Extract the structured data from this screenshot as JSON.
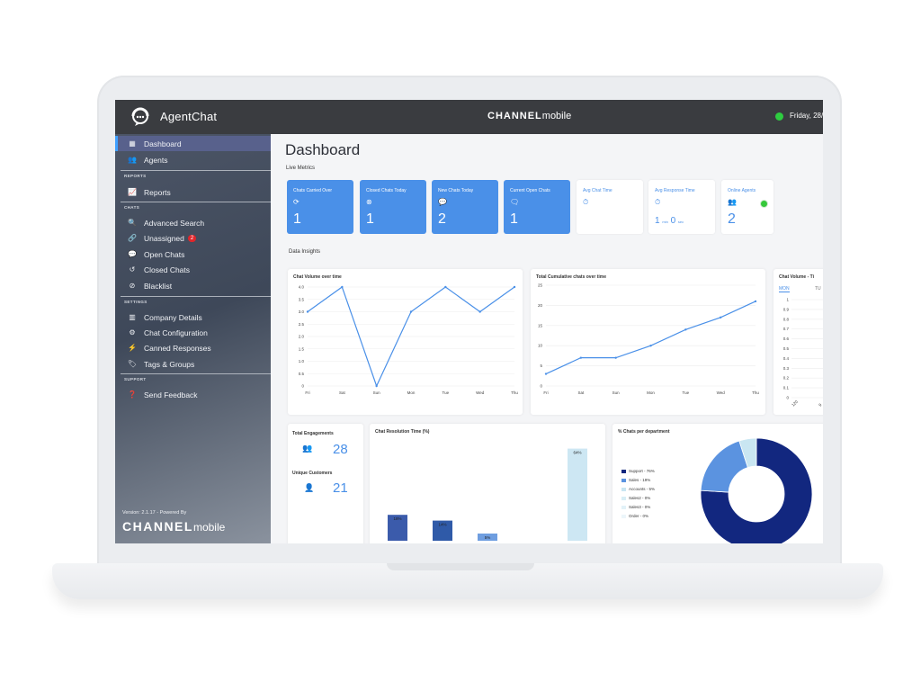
{
  "app": {
    "title": "AgentChat",
    "brand_bold": "CHANNEL",
    "brand_light": "mobile",
    "date_text": "Friday, 28/0"
  },
  "sidebar": {
    "sections": {
      "reports": "REPORTS",
      "chats": "CHATS",
      "settings": "SETTINGS",
      "support": "SUPPORT"
    },
    "items": [
      {
        "label": "Dashboard",
        "icon": "grid-icon"
      },
      {
        "label": "Agents",
        "icon": "users-icon"
      },
      {
        "label": "Reports",
        "icon": "chart-icon"
      },
      {
        "label": "Advanced Search",
        "icon": "search-icon"
      },
      {
        "label": "Unassigned",
        "icon": "link-icon",
        "badge": "2"
      },
      {
        "label": "Open Chats",
        "icon": "chat-bubbles-icon"
      },
      {
        "label": "Closed Chats",
        "icon": "history-icon"
      },
      {
        "label": "Blacklist",
        "icon": "ban-icon"
      },
      {
        "label": "Company Details",
        "icon": "building-icon"
      },
      {
        "label": "Chat Configuration",
        "icon": "cogs-icon"
      },
      {
        "label": "Canned Responses",
        "icon": "bolt-icon"
      },
      {
        "label": "Tags & Groups",
        "icon": "tags-icon"
      },
      {
        "label": "Send Feedback",
        "icon": "question-icon"
      }
    ],
    "version": "Version: 2.1.17 - Powered By",
    "footer_brand_bold": "CHANNEL",
    "footer_brand_light": "mobile"
  },
  "main": {
    "title": "Dashboard",
    "live_metrics_label": "Live Metrics",
    "data_insights_label": "Data Insights",
    "metrics": [
      {
        "title": "Chats Carried Over",
        "value": "1",
        "icon": "refresh-icon"
      },
      {
        "title": "Closed Chats Today",
        "value": "1",
        "icon": "close-circle-icon"
      },
      {
        "title": "New Chats Today",
        "value": "2",
        "icon": "chats-icon"
      },
      {
        "title": "Current Open Chats",
        "value": "1",
        "icon": "chat-icon"
      },
      {
        "title": "Avg Chat Time",
        "value": "",
        "icon": "stopwatch-icon"
      },
      {
        "title": "Avg Response Time",
        "value_min": "1",
        "unit_min": "min",
        "value_sec": "0",
        "unit_sec": "sec",
        "icon": "stopwatch-icon"
      },
      {
        "title": "Online Agents",
        "value": "2",
        "icon": "users-icon"
      }
    ],
    "engagements": {
      "total_label": "Total Engagements",
      "total_value": "28",
      "unique_label": "Unique Customers",
      "unique_value": "21"
    },
    "volume_tabs": [
      "MON",
      "TU"
    ]
  },
  "chart_data": [
    {
      "type": "line",
      "title": "Chat Volume over time",
      "categories": [
        "Fri",
        "Sat",
        "Sun",
        "Mon",
        "Tue",
        "Wed",
        "Thu"
      ],
      "values": [
        3.0,
        4.0,
        0.0,
        3.0,
        4.0,
        3.0,
        4.0
      ],
      "yticks": [
        "0",
        "0.5",
        "1.0",
        "1.5",
        "2.0",
        "2.5",
        "3.0",
        "3.5",
        "4.0"
      ],
      "ylim": [
        0,
        4
      ],
      "color": "#4a90e8"
    },
    {
      "type": "line",
      "title": "Total Cumulative chats over time",
      "categories": [
        "Fri",
        "Sat",
        "Sun",
        "Mon",
        "Tue",
        "Wed",
        "Thu"
      ],
      "values": [
        3,
        7,
        7,
        10,
        14,
        17,
        21
      ],
      "yticks": [
        "0",
        "5",
        "10",
        "15",
        "20",
        "25"
      ],
      "ylim": [
        0,
        25
      ],
      "color": "#4a90e8"
    },
    {
      "type": "line",
      "title": "Chat Volume - Ti",
      "yticks": [
        "0",
        "0.1",
        "0.2",
        "0.3",
        "0.4",
        "0.5",
        "0.6",
        "0.7",
        "0.8",
        "0.9",
        "1"
      ],
      "xticks": [
        "120",
        "9"
      ],
      "ylim": [
        0,
        1
      ]
    },
    {
      "type": "bar",
      "title": "Chat Resolution Time (%)",
      "values": [
        18,
        14,
        5,
        64
      ],
      "labels": [
        "18%",
        "14%",
        "5%",
        "64%"
      ],
      "colors": [
        "#3b5bab",
        "#2f5aa8",
        "#6f9ee0",
        "#cde7f3"
      ],
      "ylim": [
        0,
        70
      ]
    },
    {
      "type": "pie",
      "title": "% Chats per department",
      "legend": [
        "Support - 76%",
        "Sales - 19%",
        "Accounts - 5%",
        "Sales2 - 0%",
        "Sales3 - 0%",
        "Order - 0%"
      ],
      "values": [
        76,
        19,
        5,
        0,
        0,
        0
      ],
      "colors": [
        "#12277f",
        "#5b93e0",
        "#c9e6f2",
        "#d8eef6",
        "#e2f2f8",
        "#ecf6fa"
      ]
    }
  ]
}
